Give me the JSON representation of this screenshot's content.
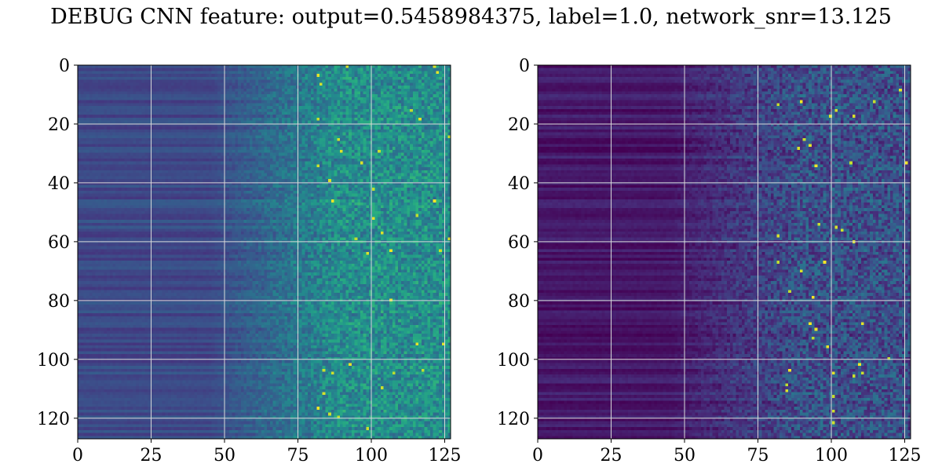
{
  "title": "DEBUG CNN feature: output=0.5458984375, label=1.0, network_snr=13.125",
  "chart_data": [
    {
      "type": "heatmap",
      "colormap": "viridis",
      "rows": 128,
      "cols": 128,
      "xlim": [
        0,
        127
      ],
      "ylim": [
        127,
        0
      ],
      "xticks": [
        "0",
        "25",
        "50",
        "75",
        "100",
        "125"
      ],
      "yticks": [
        "0",
        "20",
        "40",
        "60",
        "80",
        "100",
        "120"
      ],
      "grid": true,
      "grid_color": "#d9d9d9",
      "profile": {
        "low_mean": 0.22,
        "high_mean": 0.45,
        "noise": 0.17,
        "ramp_start": 45,
        "ramp_end": 90
      }
    },
    {
      "type": "heatmap",
      "colormap": "viridis",
      "rows": 128,
      "cols": 128,
      "xlim": [
        0,
        127
      ],
      "ylim": [
        127,
        0
      ],
      "xticks": [
        "0",
        "25",
        "50",
        "75",
        "100",
        "125"
      ],
      "yticks": [
        "0",
        "20",
        "40",
        "60",
        "80",
        "100",
        "120"
      ],
      "grid": true,
      "grid_color": "#d9d9d9",
      "profile": {
        "low_mean": 0.06,
        "high_mean": 0.2,
        "noise": 0.17,
        "ramp_start": 45,
        "ramp_end": 90
      }
    }
  ]
}
